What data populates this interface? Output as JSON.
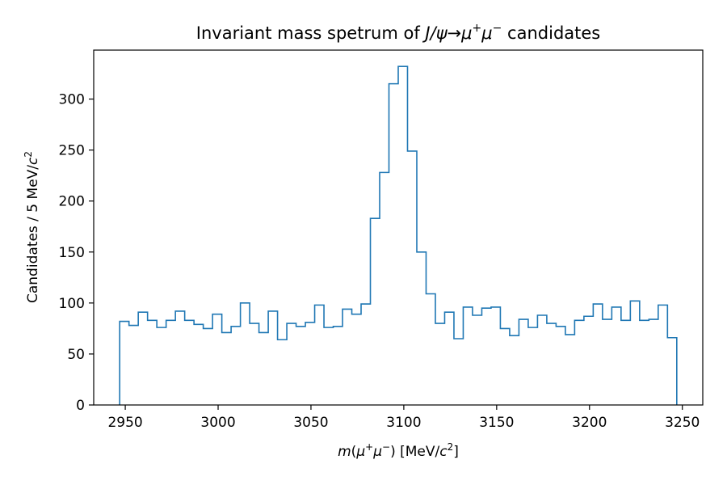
{
  "chart_data": {
    "type": "histogram",
    "title_parts": {
      "prefix": "Invariant mass spetrum of ",
      "jpsi": "J/ψ",
      "arrow": "→",
      "mu": "μ",
      "plus": "+",
      "minus": "−",
      "suffix": " candidates"
    },
    "xlabel_parts": {
      "m": "m",
      "open": "(",
      "mu": "μ",
      "plus": "+",
      "minus": "−",
      "close": ") [MeV/",
      "c": "c",
      "sq": "2",
      "end": "]"
    },
    "ylabel_parts": {
      "main": "Candidates / 5 MeV/",
      "c": "c",
      "sq": "2"
    },
    "xlim": [
      2933,
      3261
    ],
    "ylim": [
      0,
      348
    ],
    "xticks": [
      2950,
      3000,
      3050,
      3100,
      3150,
      3200,
      3250
    ],
    "yticks": [
      0,
      50,
      100,
      150,
      200,
      250,
      300
    ],
    "bin_start": 2947,
    "bin_width": 5,
    "counts": [
      82,
      78,
      91,
      83,
      76,
      83,
      92,
      83,
      79,
      75,
      89,
      71,
      77,
      100,
      80,
      71,
      92,
      64,
      80,
      77,
      81,
      98,
      76,
      77,
      94,
      89,
      99,
      183,
      228,
      315,
      332,
      249,
      150,
      109,
      80,
      91,
      65,
      96,
      88,
      95,
      96,
      75,
      68,
      84,
      76,
      88,
      80,
      77,
      69,
      83,
      87,
      99,
      84,
      96,
      83,
      102,
      83,
      84,
      98,
      66
    ],
    "color": "#1f77b4"
  }
}
